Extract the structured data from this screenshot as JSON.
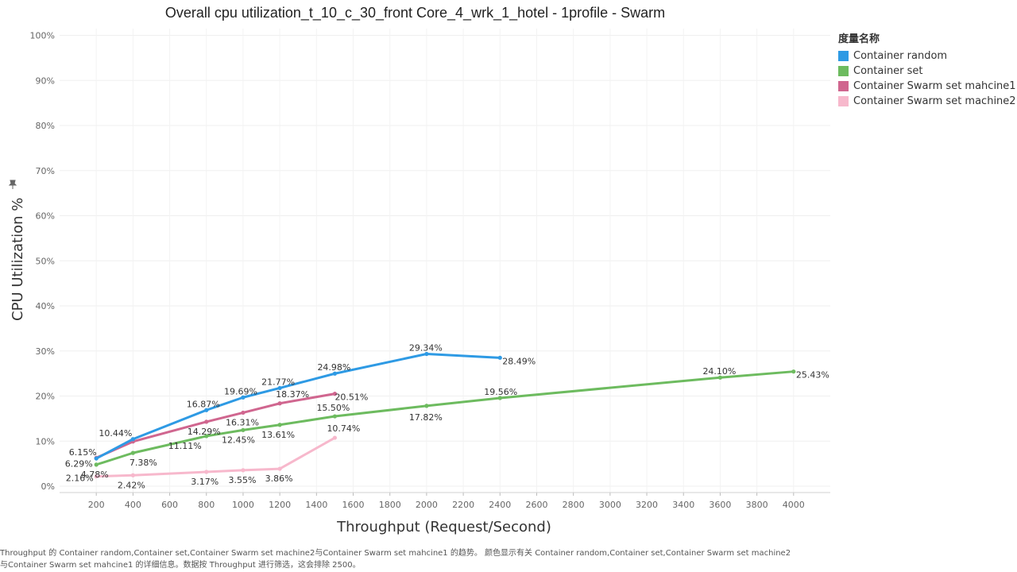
{
  "chart_data": {
    "type": "line",
    "title": "Overall cpu utilization_t_10_c_30_front Core_4_wrk_1_hotel - 1profile - Swarm",
    "xlabel": "Throughput (Request/Second)",
    "ylabel": "CPU Utilization %",
    "xlim": [
      0,
      4200
    ],
    "ylim": [
      0,
      100
    ],
    "x_ticks": [
      200,
      400,
      600,
      800,
      1000,
      1200,
      1400,
      1600,
      1800,
      2000,
      2200,
      2400,
      2600,
      2800,
      3000,
      3200,
      3400,
      3600,
      3800,
      4000
    ],
    "y_ticks": [
      "0%",
      "10%",
      "20%",
      "30%",
      "40%",
      "50%",
      "60%",
      "70%",
      "80%",
      "90%",
      "100%"
    ],
    "grid": true,
    "legend": {
      "title": "度量名称",
      "position": "right"
    },
    "series": [
      {
        "name": "Container random",
        "color": "#2e9ae4",
        "points": [
          {
            "x": 200,
            "y": 6.15,
            "label": "6.15%"
          },
          {
            "x": 400,
            "y": 10.44,
            "label": "10.44%"
          },
          {
            "x": 800,
            "y": 16.87,
            "label": "16.87%"
          },
          {
            "x": 1000,
            "y": 19.69,
            "label": "19.69%"
          },
          {
            "x": 1200,
            "y": 21.77,
            "label": "21.77%"
          },
          {
            "x": 1500,
            "y": 24.98,
            "label": "24.98%"
          },
          {
            "x": 2000,
            "y": 29.34,
            "label": "29.34%"
          },
          {
            "x": 2400,
            "y": 28.49,
            "label": "28.49%"
          }
        ]
      },
      {
        "name": "Container set",
        "color": "#6dbb5f",
        "points": [
          {
            "x": 200,
            "y": 4.78,
            "label": "4.78%"
          },
          {
            "x": 400,
            "y": 7.38,
            "label": "7.38%"
          },
          {
            "x": 800,
            "y": 11.11,
            "label": "11.11%"
          },
          {
            "x": 1000,
            "y": 12.45,
            "label": "12.45%"
          },
          {
            "x": 1200,
            "y": 13.61,
            "label": "13.61%"
          },
          {
            "x": 1500,
            "y": 15.5,
            "label": "15.50%"
          },
          {
            "x": 2000,
            "y": 17.82,
            "label": "17.82%"
          },
          {
            "x": 2400,
            "y": 19.56,
            "label": "19.56%"
          },
          {
            "x": 3600,
            "y": 24.1,
            "label": "24.10%"
          },
          {
            "x": 4000,
            "y": 25.43,
            "label": "25.43%"
          }
        ]
      },
      {
        "name": "Container Swarm set mahcine1",
        "color": "#d0668f",
        "points": [
          {
            "x": 200,
            "y": 6.29,
            "label": "6.29%"
          },
          {
            "x": 400,
            "y": 9.9,
            "label": ""
          },
          {
            "x": 800,
            "y": 14.29,
            "label": "14.29%"
          },
          {
            "x": 1000,
            "y": 16.31,
            "label": "16.31%"
          },
          {
            "x": 1200,
            "y": 18.37,
            "label": "18.37%"
          },
          {
            "x": 1500,
            "y": 20.51,
            "label": "20.51%"
          }
        ]
      },
      {
        "name": "Container Swarm set machine2",
        "color": "#f7b8cc",
        "points": [
          {
            "x": 200,
            "y": 2.16,
            "label": "2.16%"
          },
          {
            "x": 400,
            "y": 2.42,
            "label": "2.42%"
          },
          {
            "x": 800,
            "y": 3.17,
            "label": "3.17%"
          },
          {
            "x": 1000,
            "y": 3.55,
            "label": "3.55%"
          },
          {
            "x": 1200,
            "y": 3.86,
            "label": "3.86%"
          },
          {
            "x": 1500,
            "y": 10.74,
            "label": "10.74%"
          }
        ]
      }
    ]
  },
  "caption": "Throughput 的 Container random,Container set,Container Swarm set machine2与Container Swarm set mahcine1 的趋势。 颜色显示有关 Container random,Container set,Container Swarm set machine2与Container Swarm set mahcine1 的详细信息。数据按 Throughput 进行筛选，这会排除 2500。"
}
